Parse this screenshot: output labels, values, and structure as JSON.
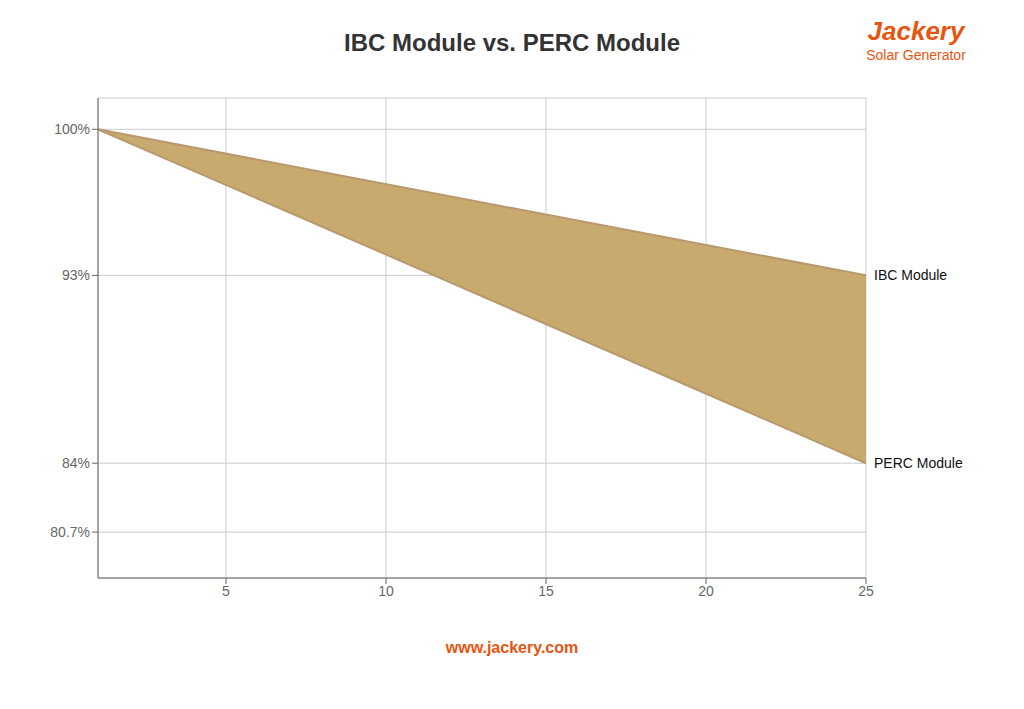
{
  "chart_data": {
    "type": "line",
    "title": "IBC Module vs. PERC Module",
    "x": [
      1,
      25
    ],
    "series": [
      {
        "name": "IBC Module",
        "color": "#b8996e",
        "values": [
          100,
          93
        ]
      },
      {
        "name": "PERC Module",
        "color": "#b8996e",
        "values": [
          100,
          84
        ]
      }
    ],
    "color": "#c8a96e",
    "xlim": [
      1,
      25
    ],
    "xticks": [
      5,
      10,
      15,
      20,
      25
    ],
    "ylim": [
      78.5,
      101.5
    ],
    "yticks": [
      {
        "value": 80.7,
        "label": "80.7%"
      },
      {
        "value": 84,
        "label": "84%"
      },
      {
        "value": 93,
        "label": "93%"
      },
      {
        "value": 100,
        "label": "100%"
      }
    ],
    "grid": true,
    "annotations": [
      {
        "text": "Jackery",
        "color": "#e85510"
      },
      {
        "text": "Solar Generator",
        "color": "#e85510"
      },
      {
        "text": "www.jackery.com",
        "color": "#e85510"
      }
    ]
  }
}
